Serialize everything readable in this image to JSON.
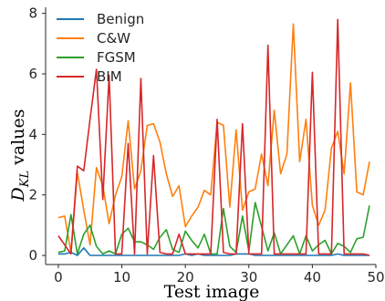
{
  "chart_data": {
    "type": "line",
    "xlabel": "Test image",
    "ylabel_main": "D",
    "ylabel_sub": "KL",
    "ylabel_rest": " values",
    "xlim": [
      -2,
      50
    ],
    "ylim": [
      -0.3,
      8.2
    ],
    "xticks": [
      0,
      10,
      20,
      30,
      40,
      50
    ],
    "xtick_labels": [
      "0",
      "10",
      "20",
      "30",
      "40",
      "50"
    ],
    "yticks": [
      0,
      2,
      4,
      6,
      8
    ],
    "ytick_labels": [
      "0",
      "2",
      "4",
      "6",
      "8"
    ],
    "grid": false,
    "legend_position": "upper-left",
    "x": [
      0,
      1,
      2,
      3,
      4,
      5,
      6,
      7,
      8,
      9,
      10,
      11,
      12,
      13,
      14,
      15,
      16,
      17,
      18,
      19,
      20,
      21,
      22,
      23,
      24,
      25,
      26,
      27,
      28,
      29,
      30,
      31,
      32,
      33,
      34,
      35,
      36,
      37,
      38,
      39,
      40,
      41,
      42,
      43,
      44,
      45,
      46,
      47,
      48,
      49
    ],
    "series": [
      {
        "name": "Benign",
        "color": "#1f77b4",
        "values": [
          0.05,
          0.05,
          0.1,
          0.0,
          0.25,
          0.0,
          0.0,
          0.0,
          0.0,
          0.0,
          0.0,
          0.0,
          0.0,
          0.0,
          0.0,
          0.0,
          0.0,
          0.0,
          0.0,
          0.0,
          0.05,
          0.0,
          0.05,
          0.0,
          0.0,
          0.0,
          0.0,
          0.0,
          0.05,
          0.05,
          0.05,
          0.0,
          0.0,
          0.0,
          0.0,
          0.0,
          0.0,
          0.0,
          0.0,
          0.0,
          0.0,
          0.0,
          0.0,
          0.0,
          0.05,
          0.0,
          0.0,
          0.0,
          0.0,
          0.0
        ]
      },
      {
        "name": "C&W",
        "color": "#ff7f0e",
        "values": [
          1.25,
          1.3,
          0.1,
          2.75,
          1.5,
          0.35,
          2.9,
          2.3,
          1.05,
          2.0,
          2.6,
          4.45,
          2.2,
          2.8,
          4.3,
          4.35,
          3.75,
          2.7,
          1.95,
          2.3,
          0.95,
          1.3,
          1.6,
          2.15,
          2.0,
          4.4,
          4.3,
          1.6,
          4.15,
          1.5,
          2.1,
          2.2,
          3.35,
          2.3,
          4.8,
          2.7,
          3.35,
          7.65,
          3.1,
          4.5,
          1.65,
          1.0,
          1.5,
          3.55,
          4.1,
          2.7,
          5.7,
          2.1,
          2.0,
          3.1
        ]
      },
      {
        "name": "FGSM",
        "color": "#2ca02c",
        "values": [
          0.1,
          0.15,
          1.35,
          0.05,
          0.7,
          1.0,
          0.3,
          0.05,
          0.15,
          0.05,
          0.7,
          0.9,
          0.45,
          0.45,
          0.35,
          0.2,
          0.6,
          0.85,
          0.2,
          0.1,
          0.8,
          0.5,
          0.25,
          0.7,
          0.05,
          0.05,
          1.55,
          0.3,
          0.1,
          1.3,
          0.15,
          1.75,
          0.95,
          0.15,
          0.75,
          0.05,
          0.35,
          0.65,
          0.05,
          0.65,
          0.15,
          0.35,
          0.5,
          0.05,
          0.4,
          0.3,
          0.1,
          0.55,
          0.6,
          1.65
        ]
      },
      {
        "name": "BIM",
        "color": "#d62728",
        "values": [
          0.65,
          0.35,
          0.05,
          2.95,
          2.8,
          4.5,
          6.15,
          1.85,
          5.95,
          0.05,
          0.05,
          3.7,
          0.05,
          5.85,
          0.05,
          3.3,
          0.1,
          0.05,
          0.05,
          0.7,
          0.05,
          0.05,
          0.05,
          0.05,
          0.05,
          4.5,
          0.1,
          0.05,
          0.05,
          4.35,
          0.05,
          0.05,
          0.05,
          6.95,
          0.05,
          0.05,
          0.05,
          0.05,
          0.05,
          0.05,
          6.05,
          0.05,
          0.05,
          0.05,
          7.8,
          0.05,
          0.05,
          0.05,
          0.05,
          0.0
        ]
      }
    ]
  }
}
